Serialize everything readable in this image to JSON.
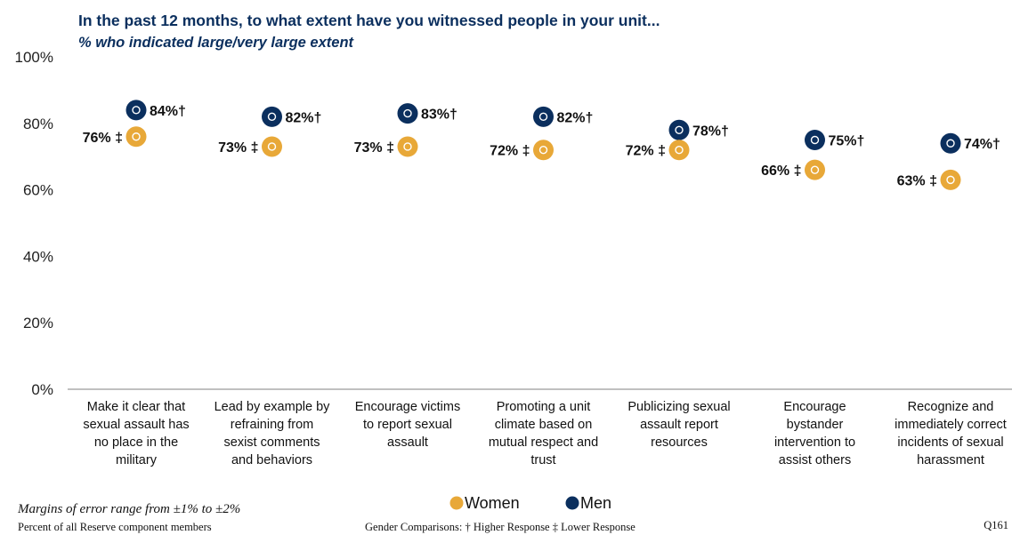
{
  "chart_data": {
    "type": "scatter",
    "title": "In the past 12 months, to what extent have you witnessed people in your unit...",
    "subtitle": "% who indicated large/very large extent",
    "ylim": [
      0,
      100
    ],
    "yticks": [
      "0%",
      "20%",
      "40%",
      "60%",
      "80%",
      "100%"
    ],
    "ytick_values": [
      0,
      20,
      40,
      60,
      80,
      100
    ],
    "grid": false,
    "legend_position": "bottom",
    "categories": [
      [
        "Make it clear that",
        "sexual assault has",
        "no place in the",
        "military"
      ],
      [
        "Lead by example by",
        "refraining from",
        "sexist comments",
        "and behaviors"
      ],
      [
        "Encourage victims",
        "to report sexual",
        "assault"
      ],
      [
        "Promoting a unit",
        "climate based on",
        "mutual respect and",
        "trust"
      ],
      [
        "Publicizing sexual",
        "assault report",
        "resources"
      ],
      [
        "Encourage",
        "bystander",
        "intervention to",
        "assist others"
      ],
      [
        "Recognize and",
        "immediately correct",
        "incidents of sexual",
        "harassment"
      ]
    ],
    "series": [
      {
        "name": "Women",
        "color": "#e8a838",
        "values": [
          76,
          73,
          73,
          72,
          72,
          66,
          63
        ],
        "labels": [
          "76% ‡",
          "73% ‡",
          "73% ‡",
          "72% ‡",
          "72% ‡",
          "66% ‡",
          "63% ‡"
        ]
      },
      {
        "name": "Men",
        "color": "#0b2f5e",
        "values": [
          84,
          82,
          83,
          82,
          78,
          75,
          74
        ],
        "labels": [
          "84%†",
          "82%†",
          "83%†",
          "82%†",
          "78%†",
          "75%†",
          "74%†"
        ]
      }
    ]
  },
  "footer": {
    "margins_note": "Margins of error range from ±1% to ±2%",
    "population": "Percent of all Reserve component members",
    "comparisons": "Gender Comparisons: † Higher Response ‡ Lower Response",
    "question_id": "Q161"
  }
}
